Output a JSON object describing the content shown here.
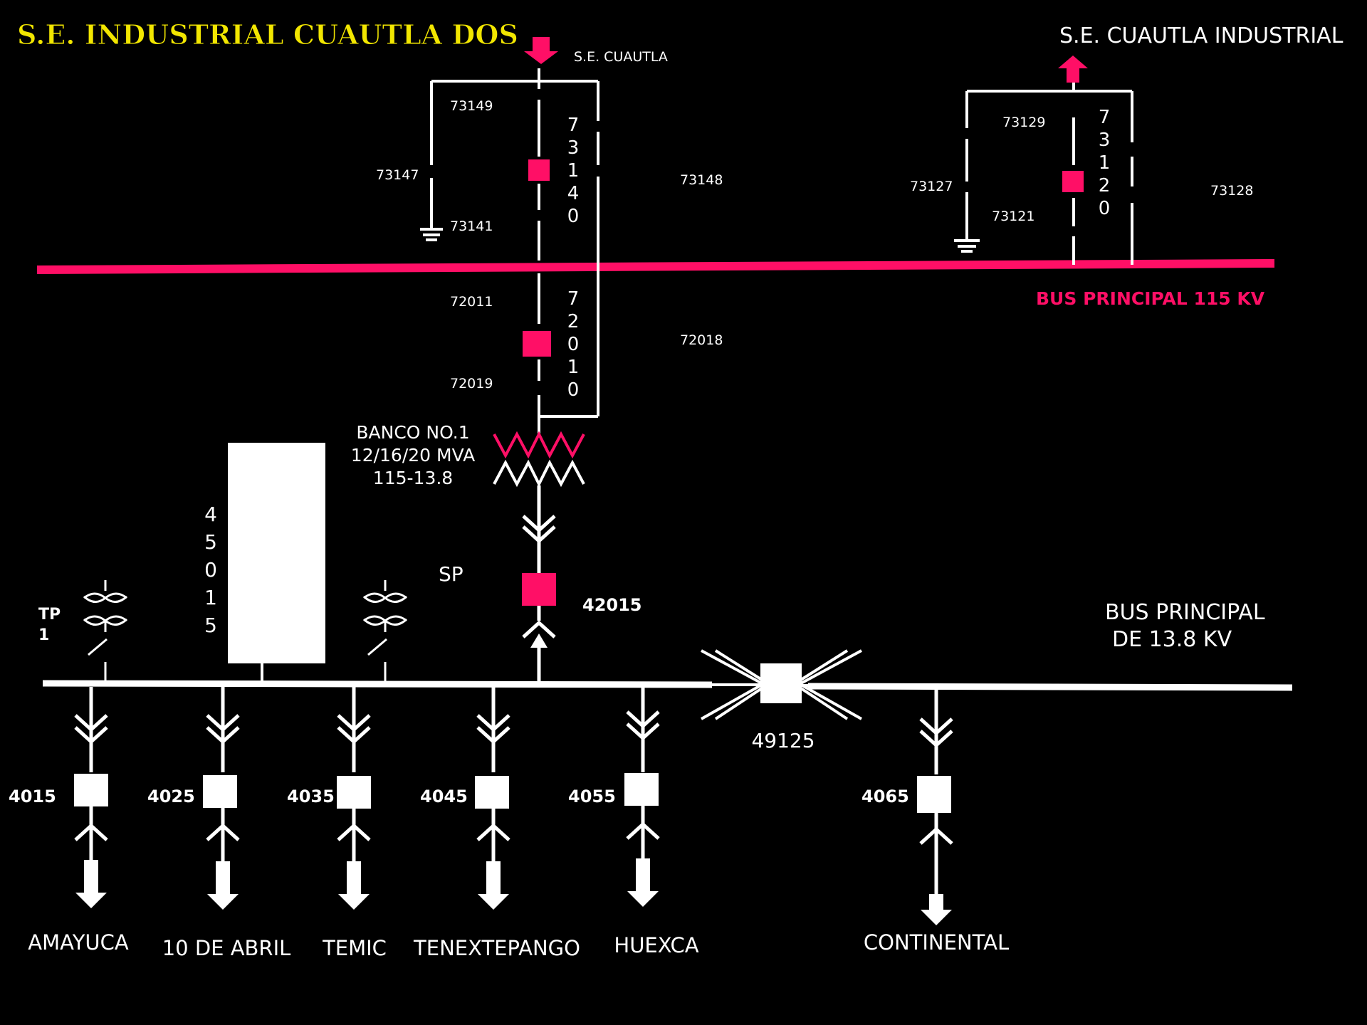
{
  "title": "S.E. INDUSTRIAL CUAUTLA DOS",
  "colors": {
    "background": "#000000",
    "bus_115": "#ff0f66",
    "title": "#f2e600",
    "lines": "#ffffff"
  },
  "upper": {
    "left_source": "S.E. CUAUTLA",
    "right_source": "S.E. CUAUTLA INDUSTRIAL",
    "bus_label": "BUS PRINCIPAL 115 KV",
    "left_switches": {
      "s73149": "73149",
      "s73147": "73147",
      "s73141": "73141",
      "s73148": "73148"
    },
    "left_breaker_digits": [
      "7",
      "3",
      "1",
      "4",
      "0"
    ],
    "right_switches": {
      "s73129": "73129",
      "s73127": "73127",
      "s73121": "73121",
      "s73128": "73128"
    },
    "right_breaker_digits": [
      "7",
      "3",
      "1",
      "2",
      "0"
    ],
    "transformer_switches": {
      "s72011": "72011",
      "s72018": "72018",
      "s72019": "72019"
    },
    "transformer_breaker_digits": [
      "7",
      "2",
      "0",
      "1",
      "0"
    ]
  },
  "bank": {
    "line1": "BANCO NO.1",
    "line2": "12/16/20 MVA",
    "line3": "115-13.8"
  },
  "middle": {
    "sp_label": "SP",
    "breaker_42015": "42015",
    "bank_digits": [
      "4",
      "5",
      "0",
      "1",
      "5"
    ],
    "tp_line1": "TP",
    "tp_line2": "1",
    "bus_label_line1": "BUS PRINCIPAL",
    "bus_label_line2": "DE  13.8 KV",
    "tie_breaker": "49125"
  },
  "feeders": [
    {
      "breaker": "4015",
      "name": "AMAYUCA"
    },
    {
      "breaker": "4025",
      "name": "10 DE ABRIL"
    },
    {
      "breaker": "4035",
      "name": "TEMIC"
    },
    {
      "breaker": "4045",
      "name": "TENEXTEPANGO"
    },
    {
      "breaker": "4055",
      "name": "HUEXCA"
    },
    {
      "breaker": "4065",
      "name": "CONTINENTAL"
    }
  ]
}
